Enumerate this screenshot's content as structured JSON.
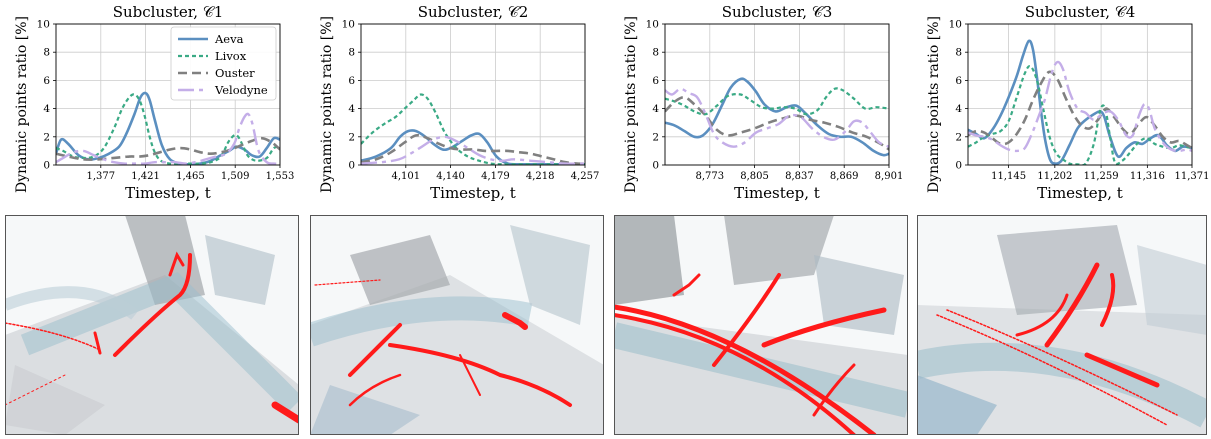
{
  "chart_data": [
    {
      "type": "line",
      "title": "Subcluster, 𝒞1",
      "xlabel": "Timestep, t",
      "ylabel": "Dynamic points ratio [%]",
      "xlim": [
        1333,
        1553
      ],
      "ylim": [
        0,
        10
      ],
      "xticks": [
        1377,
        1421,
        1465,
        1509,
        1553
      ],
      "xtick_labels": [
        "1,377",
        "1,421",
        "1,465",
        "1,509",
        "1,553"
      ],
      "yticks": [
        0,
        2,
        4,
        6,
        8,
        10
      ],
      "grid": true,
      "legend": "top-right",
      "series": [
        {
          "name": "Aeva",
          "x": [
            1333,
            1338,
            1345,
            1355,
            1365,
            1375,
            1385,
            1395,
            1402,
            1410,
            1416,
            1421,
            1425,
            1430,
            1437,
            1445,
            1455,
            1465,
            1475,
            1485,
            1495,
            1503,
            1510,
            1518,
            1525,
            1533,
            1540,
            1547,
            1553
          ],
          "y": [
            0.8,
            1.8,
            1.5,
            0.7,
            0.4,
            0.5,
            0.8,
            1.3,
            2.2,
            3.6,
            4.8,
            5.1,
            4.6,
            3.2,
            1.4,
            0.4,
            0.1,
            0.05,
            0.1,
            0.3,
            0.7,
            1.0,
            1.3,
            1.1,
            0.7,
            0.6,
            1.2,
            1.9,
            1.8
          ]
        },
        {
          "name": "Livox",
          "x": [
            1333,
            1340,
            1350,
            1360,
            1370,
            1380,
            1390,
            1398,
            1405,
            1410,
            1415,
            1420,
            1425,
            1430,
            1436,
            1445,
            1455,
            1465,
            1475,
            1485,
            1495,
            1502,
            1508,
            1512,
            1517,
            1522,
            1530,
            1540,
            1547,
            1553
          ],
          "y": [
            1.2,
            1.0,
            0.6,
            0.5,
            0.6,
            1.2,
            2.6,
            4.0,
            4.8,
            5.0,
            4.6,
            3.5,
            2.0,
            0.9,
            0.3,
            0.1,
            0.1,
            0.1,
            0.1,
            0.2,
            0.6,
            1.6,
            2.1,
            2.0,
            1.3,
            0.6,
            0.3,
            0.5,
            1.2,
            1.3
          ]
        },
        {
          "name": "Ouster",
          "x": [
            1333,
            1345,
            1360,
            1375,
            1390,
            1405,
            1415,
            1425,
            1435,
            1445,
            1455,
            1465,
            1475,
            1485,
            1495,
            1505,
            1515,
            1525,
            1535,
            1545,
            1553
          ],
          "y": [
            0.8,
            0.6,
            0.4,
            0.4,
            0.5,
            0.6,
            0.6,
            0.7,
            0.9,
            1.1,
            1.2,
            1.1,
            0.9,
            0.8,
            0.9,
            1.1,
            1.4,
            1.7,
            1.9,
            1.6,
            1.1
          ]
        },
        {
          "name": "Velodyne",
          "x": [
            1333,
            1340,
            1350,
            1360,
            1370,
            1380,
            1390,
            1400,
            1410,
            1420,
            1430,
            1440,
            1450,
            1460,
            1470,
            1480,
            1490,
            1500,
            1508,
            1513,
            1518,
            1522,
            1526,
            1532,
            1540,
            1547,
            1553
          ],
          "y": [
            0.2,
            0.5,
            0.9,
            1.0,
            0.7,
            0.4,
            0.2,
            0.1,
            0.1,
            0.1,
            0.2,
            0.2,
            0.2,
            0.1,
            0.2,
            0.4,
            0.6,
            0.8,
            1.5,
            2.6,
            3.4,
            3.6,
            2.9,
            1.0,
            0.2,
            0.1,
            0.1
          ]
        }
      ]
    },
    {
      "type": "line",
      "title": "Subcluster, 𝒞2",
      "xlabel": "Timestep, t",
      "ylabel": "Dynamic points ratio [%]",
      "xlim": [
        4062,
        4257
      ],
      "ylim": [
        0,
        10
      ],
      "xticks": [
        4101,
        4140,
        4179,
        4218,
        4257
      ],
      "xtick_labels": [
        "4,101",
        "4,140",
        "4,179",
        "4,218",
        "4,257"
      ],
      "yticks": [
        0,
        2,
        4,
        6,
        8,
        10
      ],
      "grid": true,
      "series": [
        {
          "name": "Aeva",
          "x": [
            4062,
            4075,
            4088,
            4096,
            4103,
            4110,
            4118,
            4125,
            4133,
            4140,
            4150,
            4158,
            4165,
            4172,
            4180,
            4190,
            4205,
            4220,
            4240,
            4257
          ],
          "y": [
            0.3,
            0.6,
            1.2,
            2.0,
            2.4,
            2.4,
            2.0,
            1.5,
            1.1,
            1.2,
            1.7,
            2.1,
            2.2,
            1.6,
            0.6,
            0.1,
            0.05,
            0.05,
            0.05,
            0.05
          ]
        },
        {
          "name": "Livox",
          "x": [
            4062,
            4072,
            4082,
            4092,
            4100,
            4108,
            4114,
            4120,
            4127,
            4135,
            4145,
            4155,
            4165,
            4175,
            4185,
            4200,
            4220,
            4240,
            4257
          ],
          "y": [
            1.5,
            2.3,
            2.9,
            3.4,
            4.0,
            4.6,
            5.0,
            4.7,
            3.7,
            2.3,
            1.2,
            0.6,
            0.3,
            0.1,
            0.05,
            0.05,
            0.05,
            0.05,
            0.05
          ]
        },
        {
          "name": "Ouster",
          "x": [
            4062,
            4075,
            4088,
            4100,
            4110,
            4120,
            4130,
            4140,
            4150,
            4160,
            4170,
            4180,
            4190,
            4200,
            4210,
            4220,
            4230,
            4240,
            4250,
            4257
          ],
          "y": [
            0.2,
            0.4,
            0.9,
            1.6,
            2.1,
            1.9,
            1.5,
            1.2,
            1.1,
            1.1,
            1.0,
            1.0,
            1.0,
            0.9,
            0.8,
            0.6,
            0.4,
            0.2,
            0.1,
            0.1
          ]
        },
        {
          "name": "Velodyne",
          "x": [
            4062,
            4080,
            4095,
            4105,
            4115,
            4125,
            4135,
            4145,
            4155,
            4165,
            4175,
            4185,
            4195,
            4210,
            4225,
            4240,
            4257
          ],
          "y": [
            0.1,
            0.2,
            0.4,
            0.8,
            1.3,
            1.8,
            2.0,
            1.7,
            1.2,
            0.7,
            0.4,
            0.3,
            0.4,
            0.3,
            0.2,
            0.1,
            0.1
          ]
        }
      ]
    },
    {
      "type": "line",
      "title": "Subcluster, 𝒞3",
      "xlabel": "Timestep, t",
      "ylabel": "Dynamic points ratio [%]",
      "xlim": [
        8741,
        8901
      ],
      "ylim": [
        0,
        10
      ],
      "xticks": [
        8773,
        8805,
        8837,
        8869,
        8901
      ],
      "xtick_labels": [
        "8,773",
        "8,805",
        "8,837",
        "8,869",
        "8,901"
      ],
      "yticks": [
        0,
        2,
        4,
        6,
        8,
        10
      ],
      "grid": true,
      "series": [
        {
          "name": "Aeva",
          "x": [
            8741,
            8748,
            8755,
            8762,
            8768,
            8775,
            8782,
            8788,
            8795,
            8800,
            8806,
            8812,
            8820,
            8828,
            8835,
            8842,
            8850,
            8858,
            8866,
            8874,
            8882,
            8890,
            8897,
            8901
          ],
          "y": [
            3.0,
            2.8,
            2.4,
            2.0,
            2.1,
            2.9,
            4.3,
            5.5,
            6.1,
            5.9,
            5.2,
            4.3,
            3.8,
            4.1,
            4.2,
            3.6,
            2.8,
            2.2,
            2.0,
            2.0,
            1.6,
            1.0,
            0.7,
            0.8
          ]
        },
        {
          "name": "Livox",
          "x": [
            8741,
            8748,
            8755,
            8762,
            8770,
            8778,
            8786,
            8795,
            8802,
            8810,
            8818,
            8826,
            8834,
            8842,
            8850,
            8856,
            8862,
            8868,
            8876,
            8884,
            8892,
            8901
          ],
          "y": [
            4.7,
            4.5,
            4.2,
            3.8,
            3.6,
            4.2,
            4.9,
            5.0,
            4.6,
            4.1,
            4.0,
            4.1,
            4.0,
            3.6,
            3.9,
            4.8,
            5.4,
            5.3,
            4.7,
            4.0,
            4.1,
            4.0
          ]
        },
        {
          "name": "Ouster",
          "x": [
            8741,
            8748,
            8755,
            8762,
            8770,
            8778,
            8786,
            8795,
            8805,
            8815,
            8825,
            8835,
            8845,
            8855,
            8865,
            8875,
            8885,
            8895,
            8901
          ],
          "y": [
            3.8,
            4.5,
            4.8,
            4.3,
            3.5,
            2.5,
            2.1,
            2.3,
            2.6,
            3.0,
            3.3,
            3.5,
            3.2,
            3.0,
            2.7,
            2.3,
            2.0,
            1.5,
            1.1
          ]
        },
        {
          "name": "Velodyne",
          "x": [
            8741,
            8746,
            8752,
            8758,
            8764,
            8770,
            8776,
            8782,
            8790,
            8798,
            8806,
            8814,
            8822,
            8830,
            8838,
            8846,
            8854,
            8862,
            8870,
            8876,
            8882,
            8888,
            8894,
            8901
          ],
          "y": [
            5.3,
            5.0,
            5.4,
            5.1,
            4.8,
            3.6,
            2.2,
            1.6,
            1.3,
            1.6,
            2.3,
            2.6,
            2.9,
            3.5,
            3.4,
            2.6,
            2.0,
            1.8,
            2.4,
            3.1,
            3.0,
            2.3,
            1.6,
            1.3
          ]
        }
      ]
    },
    {
      "type": "line",
      "title": "Subcluster, 𝒞4",
      "xlabel": "Timestep, t",
      "ylabel": "Dynamic points ratio [%]",
      "xlim": [
        11095,
        11371
      ],
      "ylim": [
        0,
        10
      ],
      "xticks": [
        11145,
        11202,
        11259,
        11316,
        11371
      ],
      "xtick_labels": [
        "11,145",
        "11,202",
        "11,259",
        "11,316",
        "11,371"
      ],
      "yticks": [
        0,
        2,
        4,
        6,
        8,
        10
      ],
      "grid": true,
      "series": [
        {
          "name": "Aeva",
          "x": [
            11095,
            11105,
            11115,
            11125,
            11135,
            11145,
            11155,
            11163,
            11170,
            11175,
            11180,
            11185,
            11190,
            11196,
            11202,
            11210,
            11220,
            11230,
            11240,
            11250,
            11258,
            11263,
            11270,
            11280,
            11290,
            11300,
            11310,
            11320,
            11330,
            11340,
            11350,
            11360,
            11371
          ],
          "y": [
            2.5,
            2.2,
            1.9,
            2.5,
            3.5,
            4.8,
            6.3,
            7.8,
            8.8,
            8.2,
            6.2,
            3.8,
            1.8,
            0.4,
            0.1,
            0.3,
            1.4,
            2.6,
            3.2,
            3.6,
            3.8,
            3.4,
            2.0,
            0.6,
            1.2,
            1.6,
            1.5,
            1.9,
            2.1,
            1.4,
            1.0,
            1.3,
            1.2
          ]
        },
        {
          "name": "Livox",
          "x": [
            11095,
            11105,
            11115,
            11125,
            11135,
            11145,
            11155,
            11165,
            11172,
            11180,
            11188,
            11196,
            11204,
            11212,
            11220,
            11230,
            11240,
            11250,
            11258,
            11264,
            11270,
            11276,
            11285,
            11295,
            11305,
            11315,
            11325,
            11335,
            11345,
            11355,
            11363,
            11371
          ],
          "y": [
            1.3,
            1.6,
            2.0,
            2.2,
            2.4,
            3.1,
            4.8,
            6.5,
            7.0,
            6.0,
            3.9,
            1.9,
            0.8,
            0.4,
            0.1,
            0.05,
            0.1,
            1.5,
            3.9,
            4.0,
            2.0,
            0.2,
            0.3,
            0.9,
            1.6,
            1.9,
            1.5,
            1.3,
            1.2,
            1.4,
            1.3,
            1.2
          ]
        },
        {
          "name": "Ouster",
          "x": [
            11095,
            11105,
            11115,
            11125,
            11135,
            11145,
            11155,
            11165,
            11175,
            11185,
            11195,
            11205,
            11215,
            11225,
            11235,
            11245,
            11255,
            11265,
            11275,
            11285,
            11295,
            11305,
            11315,
            11325,
            11335,
            11345,
            11355,
            11365,
            11371
          ],
          "y": [
            2.1,
            2.4,
            2.3,
            1.9,
            1.5,
            1.6,
            2.2,
            3.2,
            4.6,
            5.8,
            6.6,
            6.1,
            4.8,
            3.6,
            2.8,
            2.6,
            3.2,
            4.0,
            3.4,
            2.6,
            2.2,
            2.9,
            3.4,
            2.8,
            2.0,
            1.6,
            1.7,
            1.4,
            1.2
          ]
        },
        {
          "name": "Velodyne",
          "x": [
            11095,
            11105,
            11115,
            11125,
            11135,
            11145,
            11155,
            11165,
            11175,
            11183,
            11190,
            11198,
            11205,
            11212,
            11220,
            11230,
            11240,
            11250,
            11260,
            11270,
            11280,
            11290,
            11298,
            11305,
            11312,
            11318,
            11325,
            11335,
            11345,
            11355,
            11365,
            11371
          ],
          "y": [
            2.3,
            2.1,
            2.0,
            1.8,
            1.4,
            1.1,
            1.0,
            1.2,
            2.4,
            3.6,
            4.7,
            6.5,
            7.3,
            6.8,
            5.2,
            4.0,
            3.7,
            3.2,
            3.6,
            3.8,
            3.2,
            2.1,
            2.1,
            3.4,
            4.3,
            4.0,
            2.6,
            1.6,
            1.1,
            1.0,
            1.1,
            1.0
          ]
        }
      ]
    }
  ],
  "colors": {
    "Aeva": "#5b8fc0",
    "Livox": "#3aaa85",
    "Ouster": "#808080",
    "Velodyne": "#c4aee8"
  },
  "point_clouds": [
    {
      "name": "subcluster-1-point-cloud"
    },
    {
      "name": "subcluster-2-point-cloud"
    },
    {
      "name": "subcluster-3-point-cloud"
    },
    {
      "name": "subcluster-4-point-cloud"
    }
  ]
}
